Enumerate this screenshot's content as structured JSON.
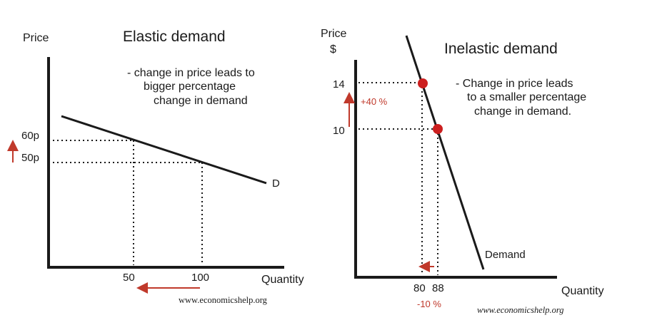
{
  "left": {
    "title": "Elastic demand",
    "y_label": "Price",
    "x_label": "Quantity",
    "note": [
      "- change in price leads to",
      "bigger percentage",
      "change in demand"
    ],
    "curve_label": "D",
    "price_ticks": [
      "60p",
      "50p"
    ],
    "quantity_ticks": [
      "50",
      "100"
    ],
    "website": "www.economicshelp.org"
  },
  "right": {
    "title": "Inelastic demand",
    "y_label": [
      "Price",
      "$"
    ],
    "x_label": "Quantity",
    "note": [
      "- Change in price leads",
      "to a smaller percentage",
      "change in demand."
    ],
    "curve_label": "Demand",
    "price_ticks": [
      "14",
      "10"
    ],
    "quantity_ticks": [
      "80",
      "88"
    ],
    "price_change": "+40 %",
    "quantity_change": "-10 %",
    "website": "www.economicshelp.org"
  },
  "colors": {
    "accent": "#c0392b",
    "point": "#cc1f1f",
    "ink": "#1a1a1a"
  }
}
